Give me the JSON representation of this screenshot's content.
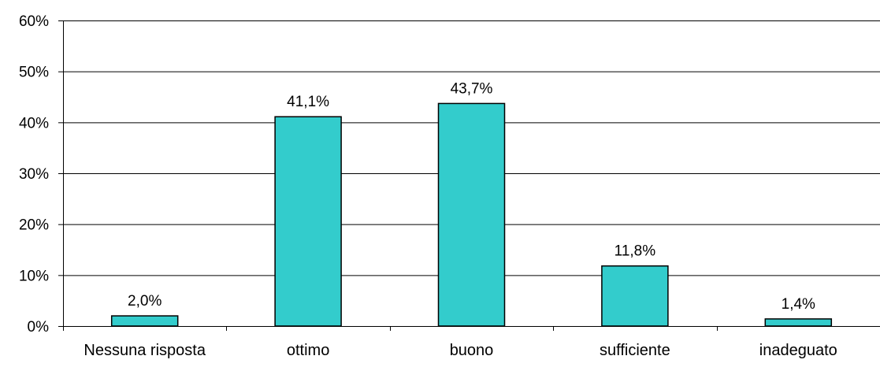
{
  "chart_data": {
    "type": "bar",
    "categories": [
      "Nessuna risposta",
      "ottimo",
      "buono",
      "sufficiente",
      "inadeguato"
    ],
    "values": [
      2.0,
      41.1,
      43.7,
      11.8,
      1.4
    ],
    "data_labels": [
      "2,0%",
      "41,1%",
      "43,7%",
      "11,8%",
      "1,4%"
    ],
    "ylim": [
      0,
      60
    ],
    "yticks": [
      0,
      10,
      20,
      30,
      40,
      50,
      60
    ],
    "ytick_labels": [
      "0%",
      "10%",
      "20%",
      "30%",
      "40%",
      "50%",
      "60%"
    ],
    "title": "",
    "xlabel": "",
    "ylabel": "",
    "grid": true,
    "legend": "none",
    "colors": {
      "bar_fill": "#33CCCC",
      "bar_stroke": "#000000",
      "gridline": "#000000",
      "axis": "#000000",
      "text": "#000000"
    }
  }
}
